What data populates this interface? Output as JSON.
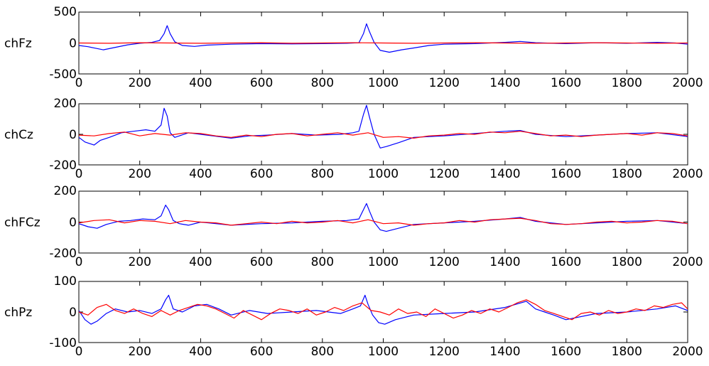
{
  "chart_data": [
    {
      "type": "line",
      "ylabel": "chFz",
      "xlim": [
        0,
        2000
      ],
      "ylim": [
        -500,
        500
      ],
      "xticks": [
        0,
        200,
        400,
        600,
        800,
        1000,
        1200,
        1400,
        1600,
        1800,
        2000
      ],
      "yticks": [
        -500,
        0,
        500
      ],
      "grid": false,
      "series": [
        {
          "color": "#0000ff",
          "x": [
            0,
            30,
            60,
            80,
            120,
            160,
            200,
            240,
            265,
            280,
            290,
            300,
            315,
            340,
            380,
            420,
            500,
            600,
            700,
            800,
            880,
            920,
            935,
            945,
            955,
            970,
            990,
            1020,
            1060,
            1100,
            1150,
            1200,
            1300,
            1400,
            1450,
            1500,
            1600,
            1700,
            1800,
            1900,
            1960,
            2000
          ],
          "y": [
            -40,
            -60,
            -90,
            -110,
            -70,
            -30,
            -5,
            10,
            40,
            150,
            280,
            150,
            20,
            -40,
            -55,
            -35,
            -20,
            -10,
            -15,
            -10,
            -5,
            5,
            150,
            310,
            180,
            10,
            -120,
            -150,
            -110,
            -80,
            -40,
            -20,
            -10,
            10,
            25,
            5,
            -10,
            5,
            -5,
            10,
            0,
            -20
          ]
        },
        {
          "color": "#ff0000",
          "x": [
            0,
            100,
            200,
            300,
            400,
            500,
            600,
            700,
            800,
            900,
            1000,
            1100,
            1200,
            1300,
            1400,
            1500,
            1600,
            1700,
            1800,
            1900,
            2000
          ],
          "y": [
            0,
            -5,
            5,
            0,
            -5,
            0,
            5,
            -5,
            0,
            5,
            0,
            -5,
            0,
            5,
            0,
            -5,
            0,
            5,
            0,
            -5,
            0
          ]
        }
      ]
    },
    {
      "type": "line",
      "ylabel": "chCz",
      "xlim": [
        0,
        2000
      ],
      "ylim": [
        -200,
        200
      ],
      "xticks": [
        0,
        200,
        400,
        600,
        800,
        1000,
        1200,
        1400,
        1600,
        1800,
        2000
      ],
      "yticks": [
        -200,
        0,
        200
      ],
      "grid": false,
      "series": [
        {
          "color": "#0000ff",
          "x": [
            0,
            20,
            50,
            70,
            100,
            140,
            180,
            220,
            250,
            270,
            280,
            290,
            300,
            315,
            330,
            360,
            400,
            440,
            500,
            560,
            620,
            700,
            780,
            860,
            900,
            920,
            935,
            945,
            955,
            970,
            990,
            1010,
            1050,
            1100,
            1200,
            1300,
            1400,
            1450,
            1500,
            1600,
            1700,
            1800,
            1900,
            2000
          ],
          "y": [
            -20,
            -50,
            -70,
            -40,
            -20,
            10,
            20,
            30,
            20,
            60,
            170,
            120,
            10,
            -20,
            -10,
            10,
            0,
            -10,
            -25,
            -10,
            -5,
            5,
            -5,
            0,
            10,
            20,
            130,
            190,
            110,
            0,
            -90,
            -80,
            -55,
            -20,
            -10,
            5,
            20,
            25,
            0,
            -15,
            -5,
            5,
            10,
            -15
          ]
        },
        {
          "color": "#ff0000",
          "x": [
            0,
            50,
            100,
            150,
            200,
            250,
            300,
            350,
            400,
            450,
            500,
            550,
            600,
            650,
            700,
            750,
            800,
            850,
            900,
            950,
            1000,
            1050,
            1100,
            1150,
            1200,
            1250,
            1300,
            1350,
            1400,
            1450,
            1500,
            1550,
            1600,
            1650,
            1700,
            1750,
            1800,
            1850,
            1900,
            1950,
            2000
          ],
          "y": [
            -5,
            -10,
            5,
            15,
            -10,
            5,
            -5,
            10,
            5,
            -10,
            -20,
            -5,
            -15,
            0,
            5,
            -10,
            0,
            10,
            -5,
            10,
            -20,
            -15,
            -25,
            -10,
            -5,
            5,
            0,
            15,
            10,
            20,
            5,
            -10,
            -5,
            -15,
            -5,
            0,
            5,
            -5,
            10,
            5,
            -10
          ]
        }
      ]
    },
    {
      "type": "line",
      "ylabel": "chFCz",
      "xlim": [
        0,
        2000
      ],
      "ylim": [
        -200,
        200
      ],
      "xticks": [
        0,
        200,
        400,
        600,
        800,
        1000,
        1200,
        1400,
        1600,
        1800,
        2000
      ],
      "yticks": [
        -200,
        0,
        200
      ],
      "grid": false,
      "series": [
        {
          "color": "#0000ff",
          "x": [
            0,
            30,
            60,
            90,
            130,
            170,
            210,
            250,
            270,
            285,
            295,
            310,
            330,
            360,
            400,
            450,
            500,
            600,
            700,
            800,
            880,
            920,
            935,
            945,
            955,
            970,
            990,
            1010,
            1050,
            1100,
            1200,
            1300,
            1400,
            1450,
            1500,
            1600,
            1700,
            1800,
            1900,
            2000
          ],
          "y": [
            -10,
            -30,
            -40,
            -15,
            5,
            10,
            20,
            15,
            40,
            110,
            80,
            10,
            -10,
            -20,
            0,
            -10,
            -20,
            -10,
            -5,
            5,
            10,
            20,
            80,
            120,
            70,
            0,
            -50,
            -60,
            -40,
            -15,
            -5,
            5,
            20,
            30,
            5,
            -15,
            -5,
            5,
            10,
            -10
          ]
        },
        {
          "color": "#ff0000",
          "x": [
            0,
            50,
            100,
            150,
            200,
            250,
            300,
            350,
            400,
            450,
            500,
            550,
            600,
            650,
            700,
            750,
            800,
            850,
            900,
            950,
            1000,
            1050,
            1100,
            1150,
            1200,
            1250,
            1300,
            1350,
            1400,
            1450,
            1500,
            1550,
            1600,
            1650,
            1700,
            1750,
            1800,
            1850,
            1900,
            1950,
            2000
          ],
          "y": [
            -5,
            10,
            15,
            -5,
            10,
            5,
            -10,
            10,
            0,
            -5,
            -20,
            -10,
            0,
            -10,
            5,
            -5,
            0,
            10,
            -5,
            15,
            -10,
            -5,
            -20,
            -10,
            -5,
            10,
            0,
            15,
            20,
            25,
            10,
            -10,
            -15,
            -10,
            0,
            5,
            -5,
            0,
            10,
            5,
            -10
          ]
        }
      ]
    },
    {
      "type": "line",
      "ylabel": "chPz",
      "xlim": [
        0,
        2000
      ],
      "ylim": [
        -100,
        100
      ],
      "xticks": [
        0,
        200,
        400,
        600,
        800,
        1000,
        1200,
        1400,
        1600,
        1800,
        2000
      ],
      "yticks": [
        -100,
        0,
        100
      ],
      "grid": false,
      "series": [
        {
          "color": "#0000ff",
          "x": [
            0,
            20,
            40,
            60,
            90,
            120,
            160,
            200,
            240,
            270,
            285,
            295,
            310,
            340,
            380,
            420,
            460,
            500,
            560,
            620,
            700,
            780,
            860,
            900,
            925,
            940,
            950,
            965,
            985,
            1005,
            1040,
            1100,
            1200,
            1300,
            1400,
            1470,
            1500,
            1560,
            1600,
            1700,
            1800,
            1900,
            1960,
            2000
          ],
          "y": [
            5,
            -25,
            -40,
            -30,
            -5,
            10,
            0,
            5,
            -5,
            10,
            40,
            55,
            10,
            0,
            20,
            25,
            10,
            -10,
            5,
            -5,
            0,
            5,
            -5,
            10,
            20,
            55,
            25,
            -10,
            -35,
            -40,
            -25,
            -10,
            -5,
            0,
            15,
            35,
            10,
            -10,
            -25,
            -5,
            0,
            10,
            20,
            5
          ]
        },
        {
          "color": "#ff0000",
          "x": [
            0,
            30,
            60,
            90,
            120,
            150,
            180,
            210,
            240,
            270,
            300,
            330,
            360,
            390,
            420,
            450,
            480,
            510,
            540,
            570,
            600,
            630,
            660,
            690,
            720,
            750,
            780,
            810,
            840,
            870,
            900,
            930,
            960,
            990,
            1020,
            1050,
            1080,
            1110,
            1140,
            1170,
            1200,
            1230,
            1260,
            1290,
            1320,
            1350,
            1380,
            1410,
            1440,
            1470,
            1500,
            1530,
            1560,
            1590,
            1620,
            1650,
            1680,
            1710,
            1740,
            1770,
            1800,
            1830,
            1860,
            1890,
            1920,
            1950,
            1980,
            2000
          ],
          "y": [
            0,
            -10,
            15,
            25,
            5,
            -5,
            10,
            -5,
            -15,
            5,
            -10,
            5,
            15,
            25,
            20,
            10,
            -5,
            -20,
            5,
            -10,
            -25,
            -5,
            10,
            5,
            -5,
            10,
            -10,
            0,
            15,
            5,
            20,
            30,
            5,
            0,
            -10,
            10,
            -5,
            0,
            -15,
            10,
            -5,
            -20,
            -10,
            5,
            -5,
            10,
            0,
            15,
            30,
            40,
            25,
            5,
            -5,
            -15,
            -25,
            -5,
            0,
            -10,
            5,
            -5,
            0,
            10,
            5,
            20,
            15,
            25,
            30,
            10
          ]
        }
      ]
    }
  ]
}
